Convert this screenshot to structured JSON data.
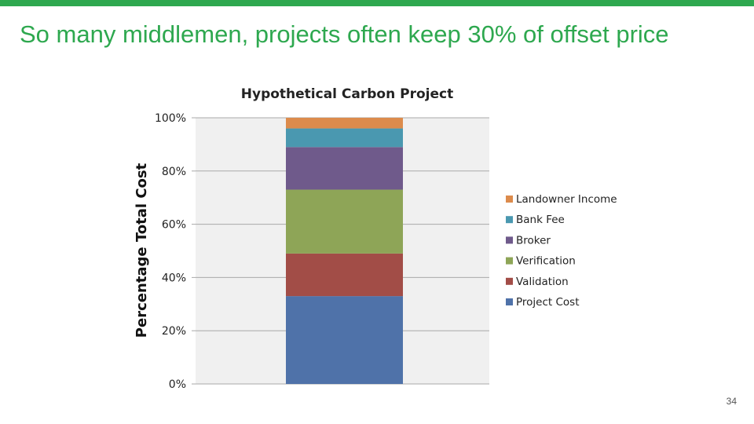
{
  "slide": {
    "title": "So many middlemen, projects often keep 30% of offset price",
    "page_number": "34",
    "accent_color": "#2ea84f"
  },
  "chart_data": {
    "type": "bar",
    "stacked": true,
    "title": "Hypothetical Carbon Project",
    "ylabel": "Percentage Total Cost",
    "xlabel": "",
    "ylim": [
      0,
      100
    ],
    "yticks": [
      "0%",
      "20%",
      "40%",
      "60%",
      "80%",
      "100%"
    ],
    "yticks_values": [
      0,
      20,
      40,
      60,
      80,
      100
    ],
    "categories": [
      ""
    ],
    "grid": true,
    "legend_position": "right",
    "series": [
      {
        "name": "Project Cost",
        "values": [
          33
        ],
        "color": "#4f72a9"
      },
      {
        "name": "Validation",
        "values": [
          16
        ],
        "color": "#a24d47"
      },
      {
        "name": "Verification",
        "values": [
          24
        ],
        "color": "#8ea557"
      },
      {
        "name": "Broker",
        "values": [
          16
        ],
        "color": "#6f5a8b"
      },
      {
        "name": "Bank Fee",
        "values": [
          7
        ],
        "color": "#4a98b0"
      },
      {
        "name": "Landowner Income",
        "values": [
          4
        ],
        "color": "#dc8b4c"
      }
    ]
  }
}
